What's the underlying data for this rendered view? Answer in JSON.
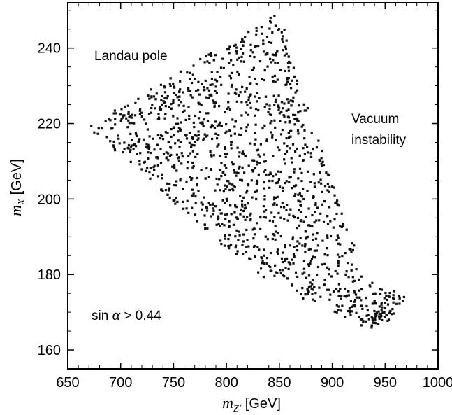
{
  "chart_data": {
    "type": "scatter",
    "xlabel": {
      "symbol": "m",
      "subscript": "Z'",
      "unit": "[GeV]"
    },
    "ylabel": {
      "symbol": "m",
      "subscript": "X",
      "unit": "[GeV]"
    },
    "xlim": [
      650,
      1000
    ],
    "ylim": [
      155,
      252
    ],
    "xticks": [
      650,
      700,
      750,
      800,
      850,
      900,
      950,
      1000
    ],
    "yticks": [
      160,
      180,
      200,
      220,
      240
    ],
    "grid": false,
    "annotations": {
      "landau": "Landau pole",
      "vacuum_line1": "Vacuum",
      "vacuum_line2": "instability",
      "condition_prefix": "sin ",
      "condition_symbol": "α",
      "condition_suffix": " > 0.44"
    },
    "region": {
      "description_points": [
        [
          668,
          219
        ],
        [
          852,
          250
        ],
        [
          858,
          240
        ],
        [
          930,
          180
        ],
        [
          970,
          174
        ],
        [
          955,
          168
        ],
        [
          935,
          165
        ],
        [
          900,
          170
        ],
        [
          840,
          178
        ],
        [
          760,
          196
        ],
        [
          720,
          207
        ]
      ],
      "n_points": 1500
    }
  }
}
